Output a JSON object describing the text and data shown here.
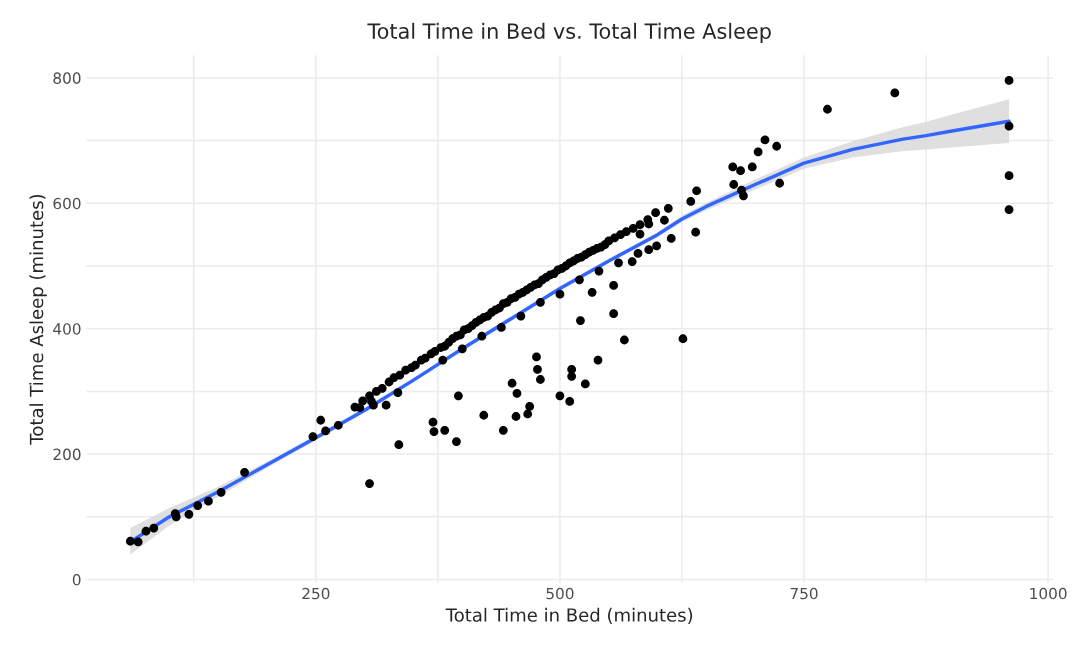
{
  "chart_data": {
    "type": "scatter",
    "title": "Total Time in Bed vs. Total Time Asleep",
    "xlabel": "Total Time in Bed (minutes)",
    "ylabel": "Total Time Asleep (minutes)",
    "xlim": [
      15,
      1005
    ],
    "ylim": [
      -5,
      836
    ],
    "xticks": [
      {
        "value": 125,
        "label": null
      },
      250,
      {
        "value": 375,
        "label": null
      },
      500,
      {
        "value": 625,
        "label": null
      },
      750,
      {
        "value": 875,
        "label": null
      },
      1000
    ],
    "yticks": [
      0,
      {
        "value": 100,
        "label": null
      },
      200,
      {
        "value": 300,
        "label": null
      },
      400,
      {
        "value": 500,
        "label": null
      },
      600,
      {
        "value": 700,
        "label": null
      },
      800
    ],
    "grid": true,
    "legend": false,
    "series": [
      {
        "color": "#000000",
        "marker": "circle",
        "x": [
          960,
          960,
          960,
          960,
          774,
          843,
          710,
          722,
          703,
          697,
          677,
          685,
          678,
          686,
          688,
          725,
          640,
          634,
          639,
          611,
          607,
          614,
          599,
          591,
          591,
          582,
          574,
          555,
          555,
          521,
          533,
          305,
          335,
          370,
          371,
          382,
          394,
          396,
          422,
          442,
          451,
          456,
          455,
          467,
          469,
          476,
          477,
          480,
          500,
          510,
          512,
          512,
          526,
          539,
          566,
          626,
          322,
          334,
          309,
          60,
          68,
          76,
          84,
          106,
          107,
          120,
          129,
          140,
          153,
          177,
          247,
          255,
          260,
          273,
          295,
          307,
          290,
          298,
          305,
          312,
          318,
          325,
          330,
          336,
          342,
          348,
          352,
          358,
          362,
          368,
          372,
          378,
          382,
          386,
          390,
          394,
          398,
          402,
          406,
          410,
          414,
          418,
          422,
          426,
          430,
          434,
          438,
          442,
          446,
          450,
          454,
          458,
          462,
          466,
          470,
          474,
          478,
          482,
          486,
          490,
          494,
          498,
          502,
          506,
          510,
          514,
          518,
          522,
          526,
          530,
          534,
          538,
          542,
          546,
          550,
          556,
          562,
          568,
          575,
          582,
          590,
          598,
          380,
          400,
          420,
          440,
          460,
          480,
          500,
          520,
          540,
          560,
          580
        ],
        "values": [
          796,
          723,
          644,
          590,
          750,
          776,
          701,
          691,
          682,
          658,
          658,
          652,
          630,
          621,
          612,
          632,
          620,
          603,
          554,
          592,
          573,
          544,
          532,
          526,
          567,
          551,
          507,
          469,
          424,
          413,
          458,
          153,
          215,
          251,
          236,
          238,
          220,
          293,
          262,
          238,
          313,
          297,
          260,
          264,
          276,
          355,
          335,
          319,
          293,
          284,
          335,
          324,
          312,
          350,
          382,
          384,
          278,
          298,
          278,
          61,
          60,
          77,
          82,
          105,
          100,
          104,
          118,
          125,
          139,
          171,
          228,
          254,
          237,
          246,
          274,
          284,
          275,
          285,
          293,
          300,
          305,
          315,
          322,
          326,
          334,
          338,
          342,
          350,
          353,
          360,
          364,
          370,
          372,
          378,
          384,
          388,
          390,
          398,
          400,
          405,
          410,
          414,
          418,
          420,
          426,
          430,
          433,
          440,
          442,
          448,
          450,
          455,
          458,
          462,
          466,
          470,
          472,
          478,
          482,
          486,
          488,
          494,
          496,
          500,
          505,
          508,
          512,
          514,
          518,
          522,
          525,
          528,
          530,
          534,
          540,
          545,
          550,
          555,
          560,
          566,
          574,
          585,
          350,
          368,
          388,
          402,
          420,
          442,
          455,
          478,
          492,
          505,
          520
        ]
      },
      {
        "type": "line",
        "color": "#3366ff",
        "x": [
          60,
          100,
          150,
          200,
          250,
          300,
          350,
          400,
          450,
          500,
          550,
          600,
          625,
          650,
          700,
          750,
          800,
          850,
          875,
          900,
          960
        ],
        "values": [
          60,
          100,
          140,
          183,
          226,
          270,
          318,
          368,
          416,
          464,
          508,
          550,
          575,
          595,
          630,
          664,
          686,
          702,
          708,
          715,
          731
        ],
        "lower": [
          40,
          86,
          132,
          178,
          222,
          266,
          315,
          365,
          413,
          461,
          505,
          546,
          570,
          589,
          622,
          655,
          673,
          683,
          686,
          689,
          696
        ],
        "upper": [
          82,
          114,
          148,
          188,
          230,
          274,
          321,
          371,
          419,
          467,
          511,
          554,
          580,
          601,
          638,
          673,
          699,
          721,
          730,
          741,
          766
        ]
      }
    ]
  }
}
